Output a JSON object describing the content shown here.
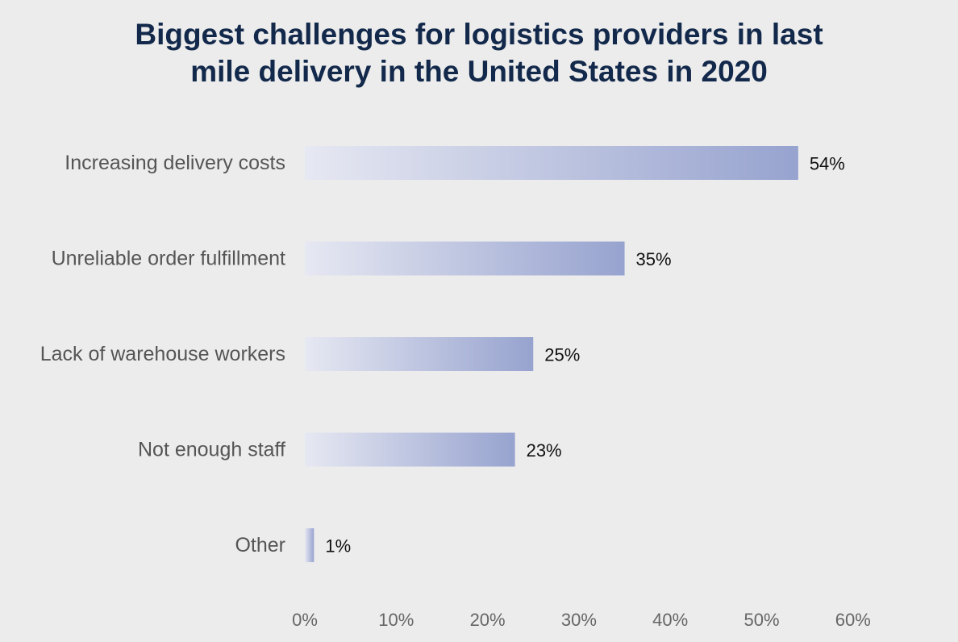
{
  "chart_data": {
    "type": "bar",
    "orientation": "horizontal",
    "title_lines": [
      "Biggest challenges for logistics providers in last",
      "mile delivery in the United States in 2020"
    ],
    "categories": [
      "Increasing delivery costs",
      "Unreliable order fulfillment",
      "Lack of warehouse workers",
      "Not enough staff",
      "Other"
    ],
    "values": [
      54,
      35,
      25,
      23,
      1
    ],
    "value_labels": [
      "54%",
      "35%",
      "25%",
      "23%",
      "1%"
    ],
    "xlim": [
      0,
      60
    ],
    "xticks": [
      0,
      10,
      20,
      30,
      40,
      50,
      60
    ],
    "xtick_labels": [
      "0%",
      "10%",
      "20%",
      "30%",
      "40%",
      "50%",
      "60%"
    ],
    "xlabel": "",
    "ylabel": "",
    "grid": false,
    "legend": "none",
    "colors": {
      "bar_start": "#e6e8f2",
      "bar_end": "#97a3cf",
      "title": "#13294b",
      "background": "#ececec"
    }
  }
}
